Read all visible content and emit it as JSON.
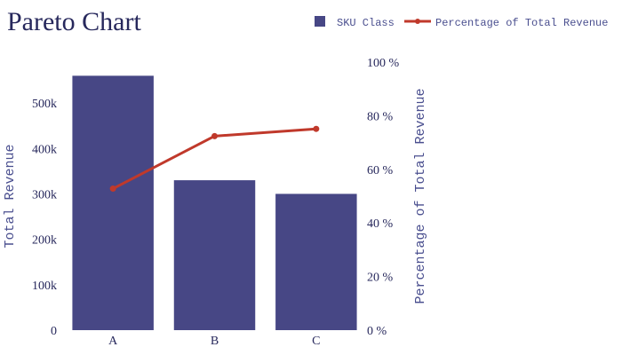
{
  "chart_data": {
    "type": "bar",
    "title": "Pareto Chart",
    "categories": [
      "A",
      "B",
      "C"
    ],
    "series": [
      {
        "name": "SKU Class",
        "type": "bar",
        "axis": "left",
        "values": [
          560000,
          330000,
          300000
        ]
      },
      {
        "name": "Percentage of Total Revenue",
        "type": "line",
        "axis": "right",
        "values": [
          52.8,
          72.4,
          75.1
        ]
      }
    ],
    "ylabel": "Total Revenue",
    "ylim": [
      0,
      590000
    ],
    "y_ticks": [
      0,
      100000,
      200000,
      300000,
      400000,
      500000
    ],
    "y_tick_labels": [
      "0",
      "100k",
      "200k",
      "300k",
      "400k",
      "500k"
    ],
    "y2label": "Percentage of Total Revenue",
    "y2lim": [
      0,
      100
    ],
    "y2_ticks": [
      0,
      20,
      40,
      60,
      80,
      100
    ],
    "y2_tick_labels": [
      "0 %",
      "20 %",
      "40 %",
      "60 %",
      "80 %",
      "100 %"
    ],
    "legend_position": "top-right",
    "grid": false,
    "colors": {
      "bar": "#474785",
      "line": "#c0392b",
      "text": "#27285c",
      "axis_title": "#4a4f8f"
    }
  }
}
